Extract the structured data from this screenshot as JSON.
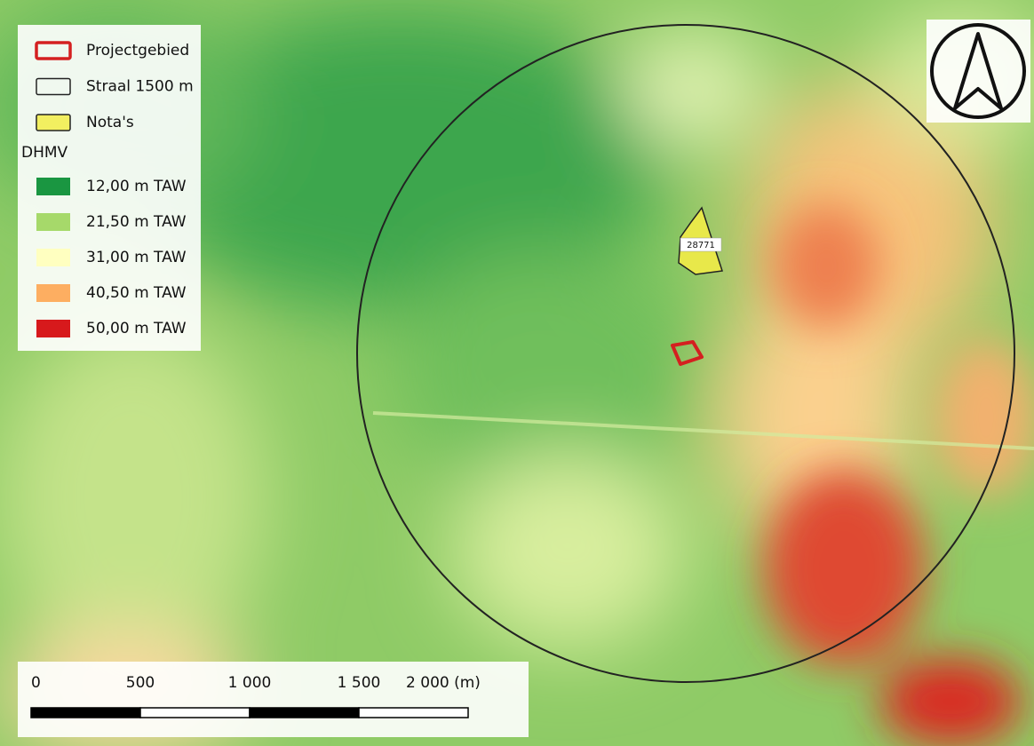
{
  "legend": {
    "layers": [
      {
        "label": "Projectgebied",
        "fill": "none",
        "stroke": "#d42020"
      },
      {
        "label": "Straal 1500 m",
        "fill": "none",
        "stroke": "#222222"
      },
      {
        "label": "Nota's",
        "fill": "#f2ef60",
        "stroke": "#222222"
      }
    ],
    "heading": "DHMV",
    "ramp": [
      {
        "label": "12,00 m TAW",
        "color": "#1a9641"
      },
      {
        "label": "21,50 m TAW",
        "color": "#a6d96a"
      },
      {
        "label": "31,00 m TAW",
        "color": "#ffffc0"
      },
      {
        "label": "40,50 m TAW",
        "color": "#fdae61"
      },
      {
        "label": "50,00 m TAW",
        "color": "#d7191c"
      }
    ]
  },
  "map": {
    "feature_label": "28771"
  },
  "scale_bar": {
    "labels": [
      "0",
      "500",
      "1 000",
      "1 500",
      "2 000 (m)"
    ]
  }
}
